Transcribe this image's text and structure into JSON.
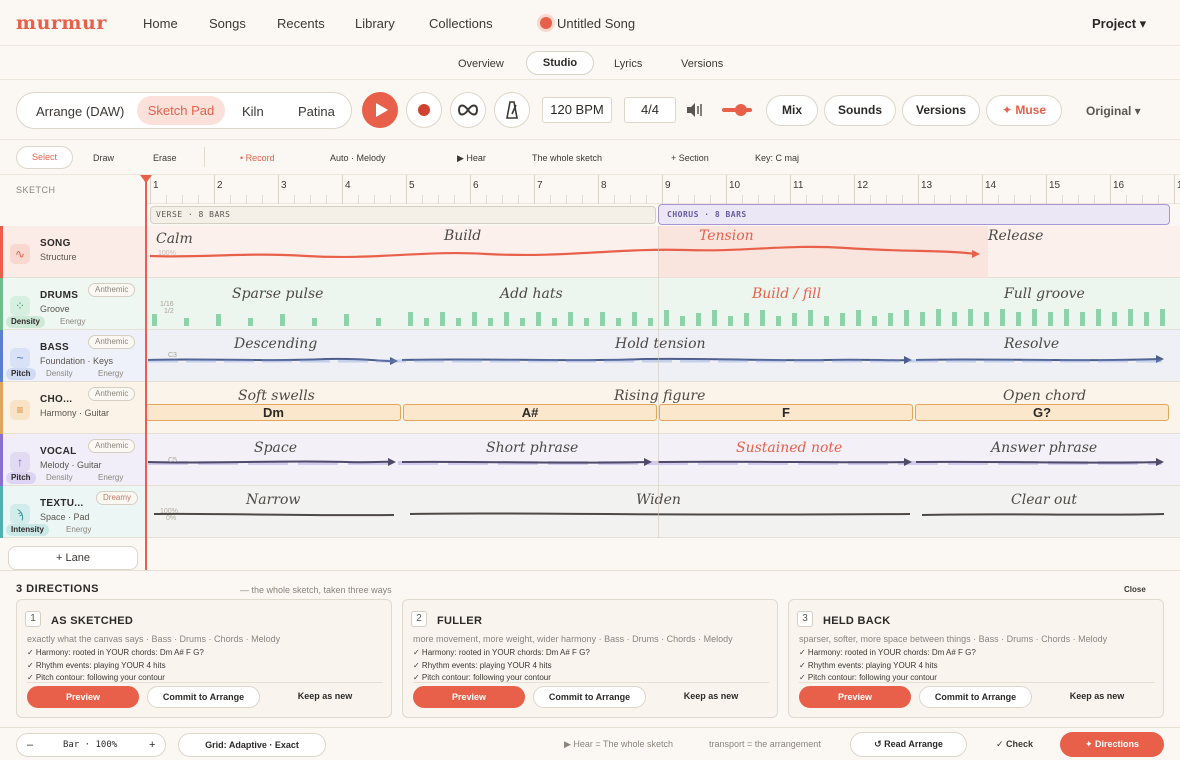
{
  "app": {
    "logo": "murmur",
    "nav": [
      "Home",
      "Songs",
      "Recents",
      "Library",
      "Collections"
    ],
    "song_title": "Untitled Song",
    "project_label": "Project ▾"
  },
  "subtabs": [
    "Overview",
    "Studio",
    "Lyrics",
    "Versions"
  ],
  "subtab_active": "Studio",
  "toolbar": {
    "modes": [
      "Arrange (DAW)",
      "Sketch Pad",
      "Kiln",
      "Patina"
    ],
    "mode_active": "Sketch Pad",
    "tempo": "120 BPM",
    "time_signature": "4/4",
    "volume": 0.65,
    "mix_label": "Mix",
    "sounds_label": "Sounds",
    "versions_label": "Versions",
    "muse_label": "✦ Muse",
    "original_label": "Original ▾"
  },
  "tools": {
    "select": "Select",
    "draw": "Draw",
    "erase": "Erase",
    "record": "• Record",
    "auto": "Auto · Melody",
    "hear": "▶ Hear",
    "scope": "The whole sketch",
    "section": "+ Section",
    "key": "Key: C maj"
  },
  "sketch": {
    "label": "SKETCH",
    "bars": [
      "1",
      "2",
      "3",
      "4",
      "5",
      "6",
      "7",
      "8",
      "9",
      "10",
      "11",
      "12",
      "13",
      "14",
      "15",
      "16",
      "1"
    ],
    "verse_label": "VERSE · 8 BARS",
    "chorus_label": "CHORUS · 8 BARS",
    "add_lane": "+ Lane",
    "lanes": [
      {
        "name": "SONG",
        "sub": "Structure",
        "badge": "",
        "chips": [],
        "annotations": [
          "Calm",
          "Build",
          "Tension",
          "Release"
        ],
        "scale": "100%"
      },
      {
        "name": "DRUMS",
        "sub": "Groove",
        "badge": "Anthemic",
        "chip_on": "Density",
        "chips_off": [
          "Energy"
        ],
        "annotations": [
          "Sparse pulse",
          "Add hats",
          "Build / fill",
          "Full groove"
        ],
        "scale_top": "1/16",
        "scale_bot": "1/2"
      },
      {
        "name": "BASS",
        "sub": "Foundation · Keys",
        "badge": "Anthemic",
        "chip_on": "Pitch",
        "chips_off": [
          "Density",
          "Energy"
        ],
        "annotations": [
          "Descending",
          "Hold tension",
          "Resolve"
        ],
        "scale": "C3"
      },
      {
        "name": "CHO...",
        "sub": "Harmony · Guitar",
        "badge": "Anthemic",
        "chip_on": "",
        "chips_off": [],
        "annotations": [
          "Soft swells",
          "Rising figure",
          "Open chord"
        ],
        "chords": [
          "Dm",
          "A#",
          "F",
          "G?"
        ]
      },
      {
        "name": "VOCAL",
        "sub": "Melody · Guitar",
        "badge": "Anthemic",
        "chip_on": "Pitch",
        "chips_off": [
          "Density",
          "Energy"
        ],
        "annotations": [
          "Space",
          "Short phrase",
          "Sustained note",
          "Answer phrase"
        ],
        "scale": "C5"
      },
      {
        "name": "TEXTU...",
        "sub": "Space · Pad",
        "badge": "Dreamy",
        "chip_on": "Intensity",
        "chips_off": [
          "Energy"
        ],
        "annotations": [
          "Narrow",
          "Widen",
          "Clear out"
        ],
        "scale_top": "100%",
        "scale_bot": "0%"
      }
    ]
  },
  "directions": {
    "title": "3 DIRECTIONS",
    "subtitle": "— the whole sketch, taken three ways",
    "close": "Close",
    "preview": "Preview",
    "commit": "Commit to Arrange",
    "keep": "Keep as new",
    "cards": [
      {
        "num": "1",
        "title": "AS SKETCHED",
        "desc": "exactly what the canvas says · Bass · Drums · Chords · Melody",
        "lines": [
          "✓ Harmony: rooted in YOUR chords: Dm A# F G?",
          "✓ Rhythm events: playing YOUR 4 hits",
          "✓ Pitch contour: following your contour"
        ]
      },
      {
        "num": "2",
        "title": "FULLER",
        "desc": "more movement, more weight, wider harmony · Bass · Drums · Chords · Melody",
        "lines": [
          "✓ Harmony: rooted in YOUR chords: Dm A# F G?",
          "✓ Rhythm events: playing YOUR 4 hits",
          "✓ Pitch contour: following your contour"
        ]
      },
      {
        "num": "3",
        "title": "HELD BACK",
        "desc": "sparser, softer, more space between things · Bass · Drums · Chords · Melody",
        "lines": [
          "✓ Harmony: rooted in YOUR chords: Dm A# F G?",
          "✓ Rhythm events: playing YOUR 4 hits",
          "✓ Pitch contour: following your contour"
        ]
      }
    ]
  },
  "footer": {
    "zoom_minus": "–",
    "zoom_value": "Bar · 100%",
    "zoom_plus": "+",
    "grid": "Grid: Adaptive · Exact",
    "hear": "▶ Hear = The whole sketch",
    "transport": "transport = the arrangement",
    "read": "↺ Read Arrange",
    "check": "✓ Check",
    "directions": "✦ Directions"
  },
  "colors": {
    "accent": "#e8604a",
    "song": "#e8604a",
    "drums": "#6fbf8e",
    "bass": "#5a7fd0",
    "chords": "#e3a55c",
    "vocal": "#8a6fd0",
    "texture": "#4fb0b0"
  }
}
